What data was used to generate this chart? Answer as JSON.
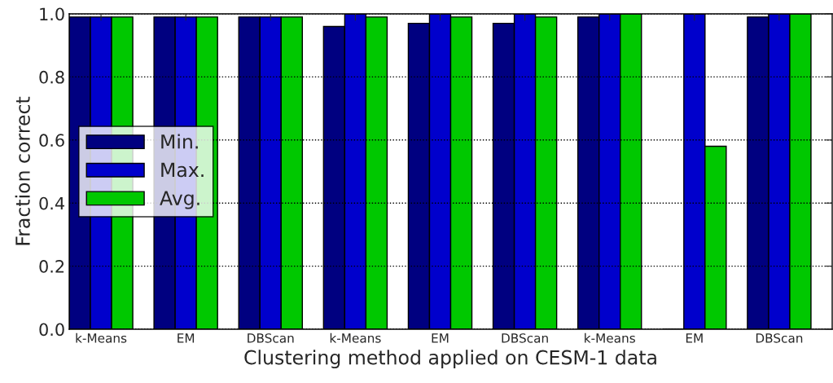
{
  "chart_data": {
    "type": "bar",
    "xlabel": "Clustering method applied on CESM-1 data",
    "ylabel": "Fraction correct",
    "categories": [
      "k-Means",
      "EM",
      "DBScan",
      "k-Means",
      "EM",
      "DBScan",
      "k-Means",
      "EM",
      "DBScan"
    ],
    "series": [
      {
        "name": "Min.",
        "color": "#000080",
        "values": [
          0.99,
          0.99,
          0.99,
          0.96,
          0.97,
          0.97,
          0.99,
          0.0,
          0.99
        ]
      },
      {
        "name": "Max.",
        "color": "#0000cc",
        "values": [
          0.99,
          0.99,
          0.99,
          1.0,
          1.0,
          1.0,
          1.0,
          1.0,
          1.0
        ]
      },
      {
        "name": "Avg.",
        "color": "#00c800",
        "values": [
          0.99,
          0.99,
          0.99,
          0.99,
          0.99,
          0.99,
          1.0,
          0.58,
          1.0
        ]
      }
    ],
    "ylim": [
      0,
      1.0
    ],
    "yticks": [
      {
        "value": 0,
        "label": "0.0"
      },
      {
        "value": 0.2,
        "label": "0.2"
      },
      {
        "value": 0.4,
        "label": "0.4"
      },
      {
        "value": 0.6,
        "label": "0.6"
      },
      {
        "value": 0.8,
        "label": "0.8"
      },
      {
        "value": 1.0,
        "label": "1.0"
      }
    ],
    "grid": "y",
    "legend": "left"
  }
}
